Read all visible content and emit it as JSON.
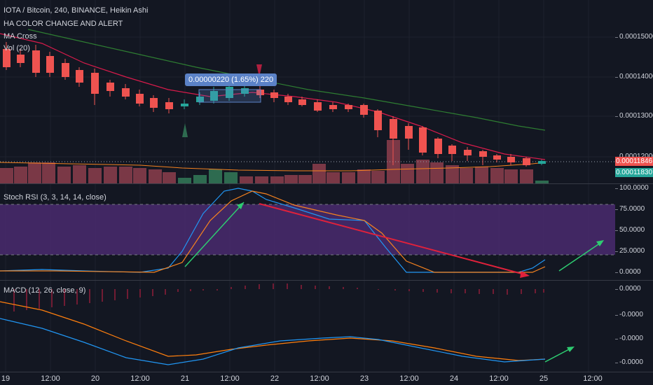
{
  "header": {
    "symbol_line": "IOTA / Bitcoin, 240, BINANCE, Heikin Ashi",
    "study_1": "HA COLOR CHANGE AND ALERT",
    "study_2": "MA Cross",
    "study_3": "Vol (20)"
  },
  "price_axis": {
    "ticks": [
      "0.00015000",
      "0.00014000",
      "0.00013000",
      "0.00012000"
    ],
    "last_price_tag": "0.00011846",
    "ma_tag": "0.00011830",
    "last_price_color": "#ef5350",
    "ma_tag_color": "#26a69a"
  },
  "measure_tooltip": {
    "text": "0.00000220 (1.65%) 220"
  },
  "stoch_rsi": {
    "title": "Stoch RSI (3, 3, 14, 14, close)",
    "ticks": [
      "100.0000",
      "75.0000",
      "50.0000",
      "25.0000",
      "0.0000"
    ],
    "band_color": "#4a2a6e"
  },
  "macd": {
    "title": "MACD (12, 26, close, 9)",
    "ticks": [
      "0.0000",
      "-0.0000",
      "-0.0000",
      "-0.0000"
    ]
  },
  "time_axis": {
    "labels": [
      "19",
      "12:00",
      "20",
      "12:00",
      "21",
      "12:00",
      "22",
      "12:00",
      "23",
      "12:00",
      "24",
      "12:00",
      "25",
      "12:00",
      "12:00"
    ]
  },
  "colors": {
    "bull": "#26a69a",
    "bear": "#ef5350",
    "ma_fast": "#d81b4b",
    "ma_slow": "#2e7d32",
    "vol_ma": "#f5821f",
    "stoch_k": "#2196f3",
    "stoch_d": "#f5821f",
    "arrow_green": "#2ecc71",
    "arrow_red": "#e0213b"
  }
}
